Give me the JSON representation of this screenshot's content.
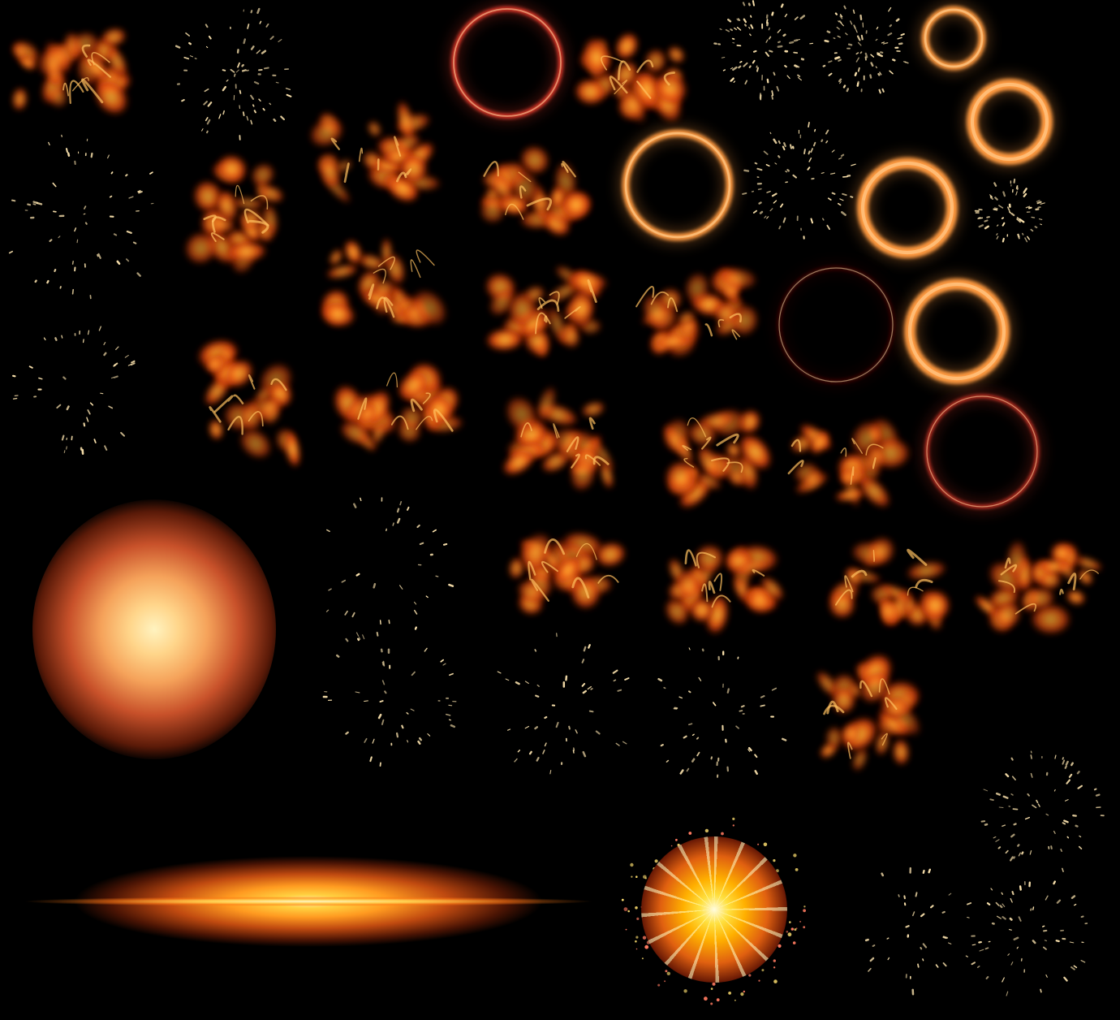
{
  "atlas": {
    "type": "particle-effect-sprite-sheet",
    "colors": {
      "background": "#000000",
      "flame_core": "#ffb030",
      "flame_mid": "#ff5a14",
      "flame_edge": "#8a1a05",
      "ring_red": "#e83a2a",
      "ring_orange": "#ff9a40",
      "ring_dark": "#4a1008",
      "spark": "#ffe6b0"
    },
    "sprites": [
      {
        "kind": "flame-cluster",
        "count": 20
      },
      {
        "kind": "ring",
        "count": 8
      },
      {
        "kind": "spark-burst",
        "count": 14
      },
      {
        "kind": "glow-orb",
        "count": 1
      },
      {
        "kind": "lens-flare-streak",
        "count": 1
      },
      {
        "kind": "starburst",
        "count": 1
      }
    ]
  }
}
